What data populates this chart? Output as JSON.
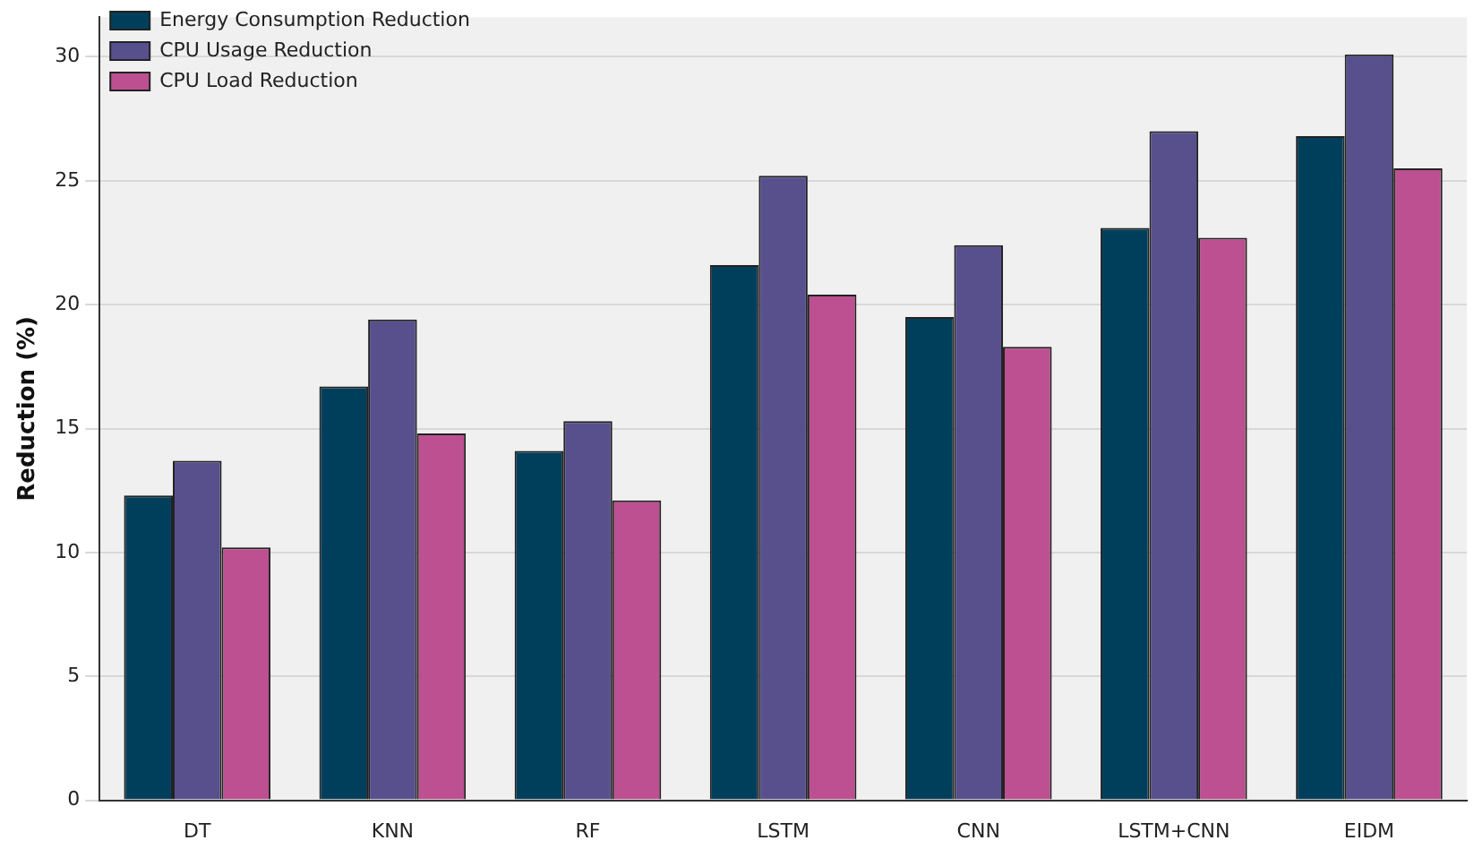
{
  "chart_data": {
    "type": "bar",
    "ylabel": "Reduction (%)",
    "categories": [
      "DT",
      "KNN",
      "RF",
      "LSTM",
      "CNN",
      "LSTM+CNN",
      "EIDM"
    ],
    "series": [
      {
        "name": "Energy Consumption Reduction",
        "color": "#003f5c",
        "values": [
          12.3,
          16.7,
          14.1,
          21.6,
          19.5,
          23.1,
          26.8
        ]
      },
      {
        "name": "CPU Usage Reduction",
        "color": "#58508d",
        "values": [
          13.7,
          19.4,
          15.3,
          25.2,
          22.4,
          27.0,
          30.1
        ]
      },
      {
        "name": "CPU Load Reduction",
        "color": "#bc5090",
        "values": [
          10.2,
          14.8,
          12.1,
          20.4,
          18.3,
          22.7,
          25.5
        ]
      }
    ],
    "ylim": [
      0,
      31.6
    ],
    "yticks": [
      0,
      5,
      10,
      15,
      20,
      25,
      30
    ],
    "grid": "y",
    "legend": "top left"
  }
}
